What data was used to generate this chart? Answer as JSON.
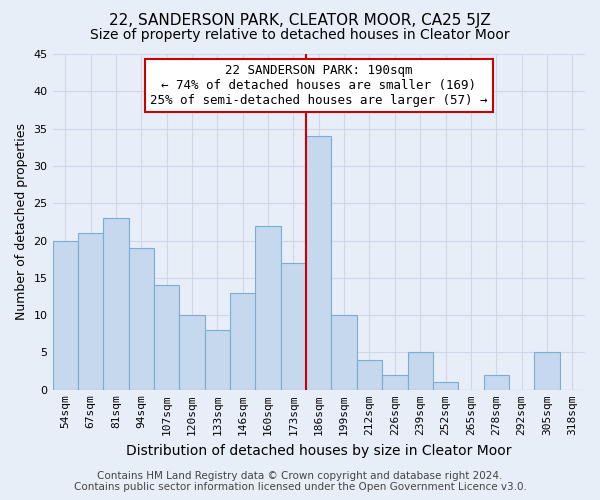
{
  "title": "22, SANDERSON PARK, CLEATOR MOOR, CA25 5JZ",
  "subtitle": "Size of property relative to detached houses in Cleator Moor",
  "xlabel": "Distribution of detached houses by size in Cleator Moor",
  "ylabel": "Number of detached properties",
  "bar_labels": [
    "54sqm",
    "67sqm",
    "81sqm",
    "94sqm",
    "107sqm",
    "120sqm",
    "133sqm",
    "146sqm",
    "160sqm",
    "173sqm",
    "186sqm",
    "199sqm",
    "212sqm",
    "226sqm",
    "239sqm",
    "252sqm",
    "265sqm",
    "278sqm",
    "292sqm",
    "305sqm",
    "318sqm"
  ],
  "bar_values": [
    20,
    21,
    23,
    19,
    14,
    10,
    8,
    13,
    22,
    17,
    34,
    10,
    4,
    2,
    5,
    1,
    0,
    2,
    0,
    5,
    0
  ],
  "bar_color": "#c5d8ed",
  "bar_edge_color": "#7aadd4",
  "highlight_line_index": 10,
  "highlight_line_color": "#cc0000",
  "ylim": [
    0,
    45
  ],
  "yticks": [
    0,
    5,
    10,
    15,
    20,
    25,
    30,
    35,
    40,
    45
  ],
  "annotation_title": "22 SANDERSON PARK: 190sqm",
  "annotation_line1": "← 74% of detached houses are smaller (169)",
  "annotation_line2": "25% of semi-detached houses are larger (57) →",
  "footer_line1": "Contains HM Land Registry data © Crown copyright and database right 2024.",
  "footer_line2": "Contains public sector information licensed under the Open Government Licence v3.0.",
  "bg_color": "#e8eef8",
  "grid_color": "#d0d8e8",
  "title_fontsize": 11,
  "subtitle_fontsize": 10,
  "xlabel_fontsize": 10,
  "ylabel_fontsize": 9,
  "tick_fontsize": 8,
  "annotation_fontsize": 9,
  "footer_fontsize": 7.5
}
